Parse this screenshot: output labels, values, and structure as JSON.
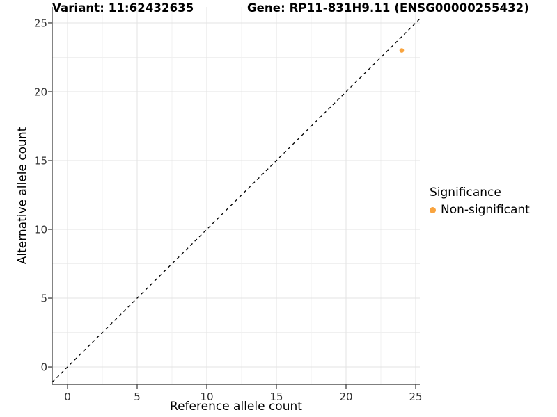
{
  "chart_data": {
    "type": "scatter",
    "titles": {
      "left": "Variant: 11:62432635",
      "right": "Gene: RP11-831H9.11 (ENSG00000255432)"
    },
    "xlabel": "Reference allele count",
    "ylabel": "Alternative allele count",
    "xlim": [
      -1.1,
      25.3
    ],
    "ylim": [
      -1.26,
      26.16
    ],
    "xticks": [
      0,
      5,
      10,
      15,
      20,
      25
    ],
    "yticks": [
      0,
      5,
      10,
      15,
      20,
      25
    ],
    "grid": {
      "major": true,
      "minor": true
    },
    "points": [
      {
        "x": 24,
        "y": 23,
        "series": "Non-significant"
      }
    ],
    "reference_line": {
      "type": "identity",
      "slope": 1,
      "intercept": 0,
      "style": "dashed"
    },
    "legend": {
      "title": "Significance",
      "position": "right",
      "entries": [
        {
          "label": "Non-significant",
          "color": "#F9A43F"
        }
      ]
    },
    "colors": {
      "grid_major": "#E3E3E3",
      "grid_minor": "#F0F0F0",
      "axis_line": "#333333",
      "reference_line": "#000000",
      "tick_label": "#303030",
      "point": "#F9A43F"
    }
  }
}
